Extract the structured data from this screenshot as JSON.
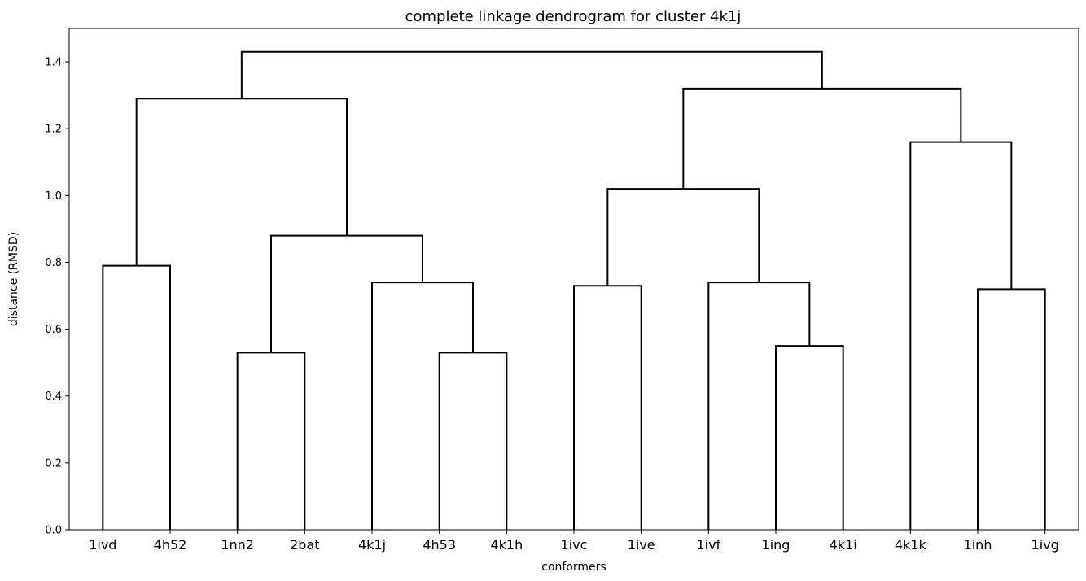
{
  "chart_data": {
    "type": "dendrogram",
    "title": "complete linkage dendrogram for cluster 4k1j",
    "xlabel": "conformers",
    "ylabel": "distance (RMSD)",
    "ylim": [
      0,
      1.5
    ],
    "yticks": [
      "0.0",
      "0.2",
      "0.4",
      "0.6",
      "0.8",
      "1.0",
      "1.2",
      "1.4"
    ],
    "leaves": [
      "1ivd",
      "4h52",
      "1nn2",
      "2bat",
      "4k1j",
      "4h53",
      "4k1h",
      "1ivc",
      "1ive",
      "1ivf",
      "1ing",
      "4k1i",
      "4k1k",
      "1inh",
      "1ivg"
    ],
    "merges": [
      {
        "left": 0,
        "right": 1,
        "height": 0.79
      },
      {
        "left": 2,
        "right": 3,
        "height": 0.53
      },
      {
        "left": 5,
        "right": 6,
        "height": 0.53
      },
      {
        "left": 4,
        "right": 17,
        "height": 0.74
      },
      {
        "left": 16,
        "right": 18,
        "height": 0.88
      },
      {
        "left": 15,
        "right": 19,
        "height": 1.29
      },
      {
        "left": 7,
        "right": 8,
        "height": 0.73
      },
      {
        "left": 10,
        "right": 11,
        "height": 0.55
      },
      {
        "left": 9,
        "right": 22,
        "height": 0.74
      },
      {
        "left": 21,
        "right": 23,
        "height": 1.02
      },
      {
        "left": 13,
        "right": 14,
        "height": 0.72
      },
      {
        "left": 12,
        "right": 25,
        "height": 1.16
      },
      {
        "left": 24,
        "right": 26,
        "height": 1.32
      },
      {
        "left": 20,
        "right": 27,
        "height": 1.43
      }
    ],
    "grid": false,
    "legend": false
  }
}
